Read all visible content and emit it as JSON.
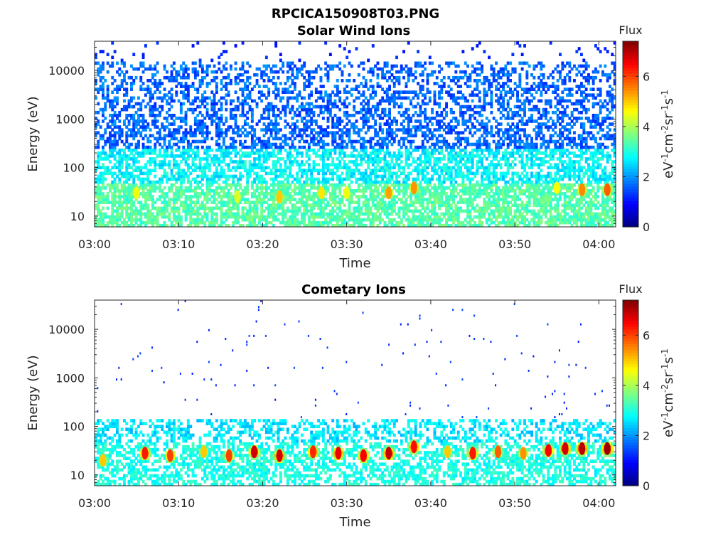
{
  "figure": {
    "title": "RPCICA150908T03.PNG"
  },
  "chart_data": [
    {
      "type": "heatmap",
      "title": "Solar Wind Ions",
      "xlabel": "Time",
      "ylabel": "Energy (eV)",
      "yscale": "log",
      "ylim": [
        6,
        40000
      ],
      "xlim": [
        "03:00",
        "04:02"
      ],
      "x_ticks": [
        "03:00",
        "03:10",
        "03:20",
        "03:30",
        "03:40",
        "03:50",
        "04:00"
      ],
      "y_ticks": [
        "10",
        "100",
        "1000",
        "10000"
      ],
      "colorbar": {
        "label": "Flux",
        "unit": "eV-1cm-2sr-1s-1",
        "range": [
          0,
          7.4
        ],
        "ticks": [
          "0",
          "2",
          "4",
          "6"
        ],
        "colormap": "jet"
      },
      "hotspots": [
        {
          "t": "03:05",
          "e": 30,
          "v": 4.5
        },
        {
          "t": "03:17",
          "e": 25,
          "v": 4.4
        },
        {
          "t": "03:22",
          "e": 25,
          "v": 5.0
        },
        {
          "t": "03:27",
          "e": 30,
          "v": 4.8
        },
        {
          "t": "03:30",
          "e": 30,
          "v": 4.5
        },
        {
          "t": "03:35",
          "e": 30,
          "v": 5.3
        },
        {
          "t": "03:38",
          "e": 38,
          "v": 5.4
        },
        {
          "t": "03:55",
          "e": 38,
          "v": 4.6
        },
        {
          "t": "03:58",
          "e": 35,
          "v": 5.5
        },
        {
          "t": "04:01",
          "e": 35,
          "v": 5.8
        }
      ]
    },
    {
      "type": "heatmap",
      "title": "Cometary Ions",
      "xlabel": "Time",
      "ylabel": "Energy (eV)",
      "yscale": "log",
      "ylim": [
        6,
        40000
      ],
      "xlim": [
        "03:00",
        "04:02"
      ],
      "x_ticks": [
        "03:00",
        "03:10",
        "03:20",
        "03:30",
        "03:40",
        "03:50",
        "04:00"
      ],
      "y_ticks": [
        "10",
        "100",
        "1000",
        "10000"
      ],
      "colorbar": {
        "label": "Flux",
        "unit": "eV-1cm-2sr-1s-1",
        "range": [
          0,
          7.4
        ],
        "ticks": [
          "0",
          "2",
          "4",
          "6"
        ],
        "colormap": "jet"
      },
      "hotspots": [
        {
          "t": "03:01",
          "e": 20,
          "v": 5.0
        },
        {
          "t": "03:06",
          "e": 28,
          "v": 6.3
        },
        {
          "t": "03:09",
          "e": 25,
          "v": 6.0
        },
        {
          "t": "03:13",
          "e": 30,
          "v": 5.0
        },
        {
          "t": "03:16",
          "e": 25,
          "v": 6.0
        },
        {
          "t": "03:19",
          "e": 30,
          "v": 6.8
        },
        {
          "t": "03:22",
          "e": 25,
          "v": 6.8
        },
        {
          "t": "03:26",
          "e": 30,
          "v": 6.2
        },
        {
          "t": "03:29",
          "e": 28,
          "v": 6.6
        },
        {
          "t": "03:32",
          "e": 25,
          "v": 6.5
        },
        {
          "t": "03:35",
          "e": 28,
          "v": 6.9
        },
        {
          "t": "03:38",
          "e": 38,
          "v": 6.4
        },
        {
          "t": "03:42",
          "e": 30,
          "v": 5.0
        },
        {
          "t": "03:45",
          "e": 28,
          "v": 6.3
        },
        {
          "t": "03:48",
          "e": 30,
          "v": 5.8
        },
        {
          "t": "03:51",
          "e": 28,
          "v": 5.4
        },
        {
          "t": "03:54",
          "e": 32,
          "v": 6.5
        },
        {
          "t": "03:56",
          "e": 35,
          "v": 6.8
        },
        {
          "t": "03:58",
          "e": 35,
          "v": 7.0
        },
        {
          "t": "04:01",
          "e": 35,
          "v": 7.2
        }
      ]
    }
  ]
}
